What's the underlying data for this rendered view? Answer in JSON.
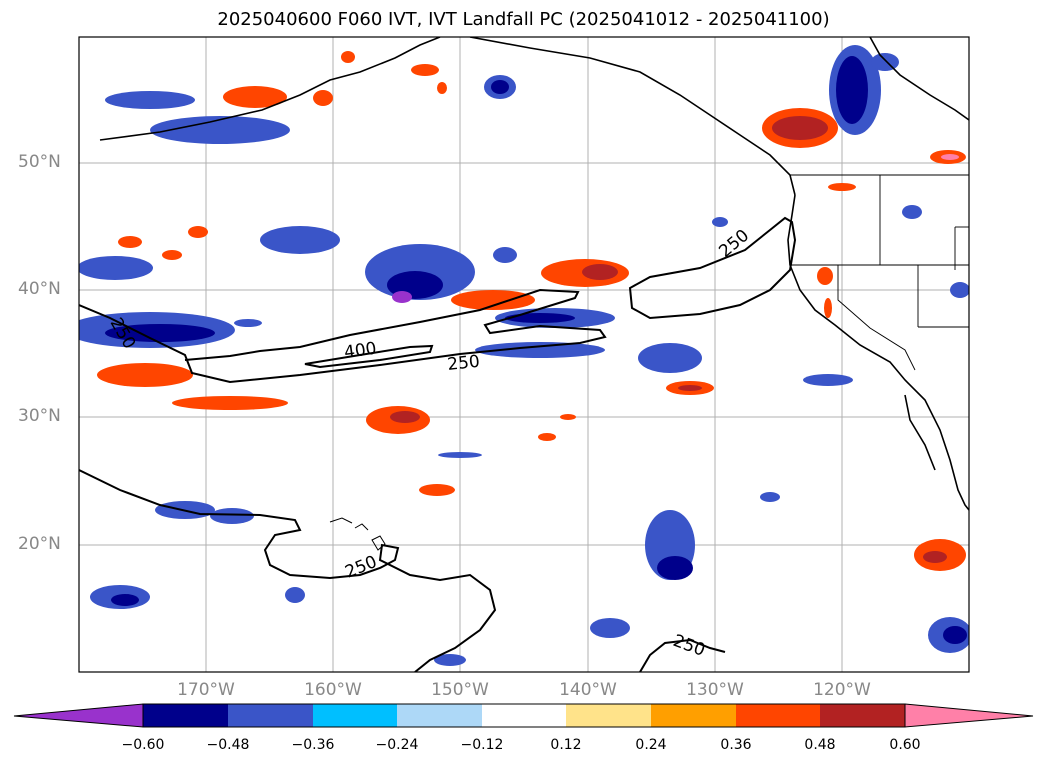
{
  "title": "2025040600 F060 IVT, IVT Landfall PC (2025041012 - 2025041100)",
  "map": {
    "lat_labels": [
      "50°N",
      "40°N",
      "30°N",
      "20°N"
    ],
    "lon_labels": [
      "170°W",
      "160°W",
      "150°W",
      "140°W",
      "130°W",
      "120°W"
    ],
    "extent": {
      "lon_min": -180,
      "lon_max": -110,
      "lat_min": 10,
      "lat_max": 60
    },
    "grid": true,
    "contour_labels": [
      "250",
      "400",
      "250",
      "250",
      "250",
      "250"
    ]
  },
  "colorbar": {
    "ticks": [
      "−0.60",
      "−0.48",
      "−0.36",
      "−0.24",
      "−0.12",
      "0.12",
      "0.24",
      "0.36",
      "0.48",
      "0.60"
    ],
    "colors": [
      "#9932cc",
      "#00008b",
      "#3a55c8",
      "#00bfff",
      "#add8f7",
      "#ffffff",
      "#ffe38a",
      "#ff9f00",
      "#ff4500",
      "#b22222",
      "#ff80a8"
    ]
  }
}
